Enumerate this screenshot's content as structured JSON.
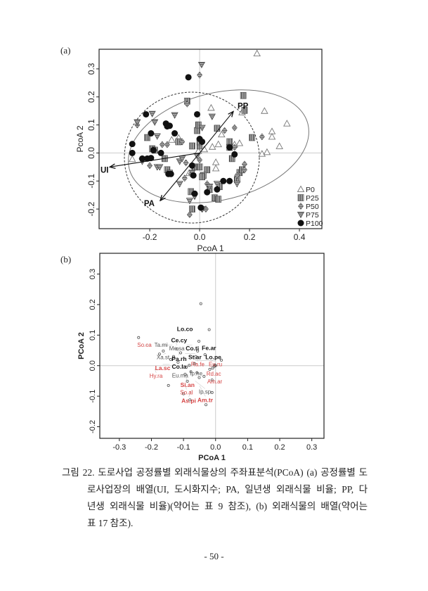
{
  "panel_a_label": "(a)",
  "panel_b_label": "(b)",
  "caption": {
    "lines": [
      "그림 22. 도로사업 공정률별 외래식물상의 주좌표분석(PCoA) (a) 공정률별 도",
      "로사업장의 배열(UI, 도시화지수; PA, 일년생 외래식물 비율; PP, 다",
      "년생 외래식물 비율)(약어는 표 9 참조), (b) 외래식물의 배열(약어는",
      "표 17 참조)."
    ]
  },
  "page_number": "- 50 -",
  "chart_data": [
    {
      "type": "scatter",
      "title": "",
      "xlabel": "PcoA 1",
      "ylabel": "PcoA 2",
      "xlim": [
        -0.403,
        0.49
      ],
      "ylim": [
        -0.27,
        0.37
      ],
      "xticks": [
        "-0.2",
        "0.0",
        "0.2",
        "0.4"
      ],
      "xtick_values": [
        -0.2,
        0.0,
        0.2,
        0.4
      ],
      "yticks": [
        "-0.2",
        "-0.1",
        "0.0",
        "0.1",
        "0.2",
        "0.3"
      ],
      "ytick_values": [
        -0.2,
        -0.1,
        0.0,
        0.1,
        0.2,
        0.3
      ],
      "legend_placement": "bottom-right",
      "series": [
        {
          "name": "P0",
          "marker": "open-triangle",
          "points": [
            [
              0.23,
              0.355
            ],
            [
              0.26,
              0.15
            ],
            [
              0.35,
              0.105
            ],
            [
              0.29,
              0.077
            ],
            [
              0.29,
              0.058
            ],
            [
              0.32,
              0.024
            ],
            [
              0.25,
              -0.003
            ],
            [
              0.27,
              0.003
            ],
            [
              0.046,
              0.161
            ],
            [
              0.088,
              0.066
            ],
            [
              0.075,
              0.031
            ],
            [
              0.051,
              0.022
            ],
            [
              0.065,
              -0.033
            ],
            [
              0.065,
              -0.055
            ],
            [
              0.12,
              0.03
            ],
            [
              0.14,
              0.03
            ],
            [
              0.16,
              0.035
            ],
            [
              -0.042,
              -0.072
            ],
            [
              -0.084,
              0.054
            ],
            [
              -0.112,
              0.047
            ],
            [
              0.019,
              0.013
            ],
            [
              -0.005,
              0.007
            ],
            [
              -0.27,
              -0.022
            ],
            [
              0.17,
              0.145
            ]
          ]
        },
        {
          "name": "P25",
          "marker": "striped-square",
          "points": [
            [
              0.175,
              0.205
            ],
            [
              0.18,
              0.152
            ],
            [
              0.21,
              0.055
            ],
            [
              -0.05,
              0.185
            ],
            [
              0.07,
              0.088
            ],
            [
              -0.01,
              0.08
            ],
            [
              -0.005,
              0.1
            ],
            [
              0.12,
              0.04
            ],
            [
              0.12,
              0.02
            ],
            [
              0.13,
              -0.02
            ],
            [
              -0.21,
              0.055
            ],
            [
              -0.19,
              0.015
            ],
            [
              -0.18,
              0.01
            ],
            [
              -0.14,
              -0.02
            ],
            [
              -0.13,
              -0.06
            ],
            [
              -0.12,
              -0.072
            ],
            [
              -0.085,
              0.04
            ],
            [
              -0.03,
              0.025
            ],
            [
              0.0,
              0.025
            ],
            [
              0.03,
              -0.06
            ],
            [
              0.015,
              -0.08
            ],
            [
              0.01,
              -0.085
            ],
            [
              -0.02,
              -0.05
            ],
            [
              0.0,
              -0.05
            ],
            [
              0.16,
              -0.07
            ],
            [
              0.15,
              -0.095
            ],
            [
              0.17,
              -0.06
            ],
            [
              0.08,
              -0.12
            ],
            [
              0.06,
              -0.16
            ],
            [
              0.075,
              -0.165
            ],
            [
              -0.035,
              -0.138
            ],
            [
              -0.03,
              -0.2
            ],
            [
              0.04,
              -0.13
            ],
            [
              0.0,
              0.04
            ]
          ]
        },
        {
          "name": "P50",
          "marker": "striped-diamond",
          "points": [
            [
              0.0,
              0.278
            ],
            [
              -0.05,
              0.175
            ],
            [
              -0.25,
              0.1
            ],
            [
              0.1,
              0.08
            ],
            [
              0.14,
              0.09
            ],
            [
              0.25,
              0.058
            ],
            [
              0.14,
              0.02
            ],
            [
              -0.07,
              0.04
            ],
            [
              -0.15,
              0.03
            ],
            [
              -0.2,
              -0.045
            ],
            [
              -0.055,
              -0.035
            ],
            [
              0.18,
              -0.04
            ],
            [
              0.18,
              -0.06
            ],
            [
              -0.035,
              -0.075
            ],
            [
              -0.06,
              -0.09
            ],
            [
              0.03,
              -0.11
            ],
            [
              0.15,
              -0.08
            ],
            [
              0.01,
              -0.2
            ],
            [
              0.025,
              -0.2
            ],
            [
              -0.04,
              -0.22
            ],
            [
              -0.02,
              -0.15
            ],
            [
              0.0,
              -0.025
            ],
            [
              -0.13,
              0.03
            ]
          ]
        },
        {
          "name": "P75",
          "marker": "striped-down-triangle",
          "points": [
            [
              0.008,
              0.315
            ],
            [
              -0.19,
              0.14
            ],
            [
              -0.1,
              0.135
            ],
            [
              0.05,
              0.13
            ],
            [
              -0.18,
              0.11
            ],
            [
              -0.25,
              0.11
            ],
            [
              0.01,
              0.09
            ],
            [
              -0.17,
              0.06
            ],
            [
              -0.23,
              -0.03
            ],
            [
              -0.17,
              -0.05
            ],
            [
              -0.16,
              -0.05
            ],
            [
              -0.08,
              -0.03
            ],
            [
              -0.01,
              -0.01
            ],
            [
              -0.08,
              -0.11
            ],
            [
              -0.03,
              -0.07
            ],
            [
              0.07,
              -0.11
            ],
            [
              0.04,
              -0.12
            ],
            [
              0.15,
              -0.11
            ],
            [
              -0.02,
              -0.155
            ],
            [
              -0.04,
              -0.17
            ],
            [
              0.01,
              -0.2
            ],
            [
              0.12,
              0.02
            ],
            [
              -0.07,
              -0.02
            ]
          ]
        },
        {
          "name": "P100",
          "marker": "filled-circle",
          "points": [
            [
              -0.045,
              0.27
            ],
            [
              -0.215,
              0.138
            ],
            [
              -0.01,
              0.138
            ],
            [
              -0.135,
              0.105
            ],
            [
              -0.13,
              0.095
            ],
            [
              -0.12,
              0.097
            ],
            [
              -0.1,
              0.07
            ],
            [
              -0.195,
              0.07
            ],
            [
              -0.27,
              0.032
            ],
            [
              -0.27,
              0.0
            ],
            [
              -0.185,
              0.01
            ],
            [
              -0.155,
              0.0
            ],
            [
              -0.23,
              -0.02
            ],
            [
              -0.21,
              -0.02
            ],
            [
              -0.195,
              -0.018
            ],
            [
              -0.125,
              -0.075
            ],
            [
              -0.115,
              -0.075
            ],
            [
              -0.03,
              -0.045
            ],
            [
              -0.025,
              -0.08
            ],
            [
              0.0,
              0.05
            ],
            [
              0.01,
              0.04
            ],
            [
              0.12,
              0.02
            ],
            [
              0.14,
              -0.005
            ],
            [
              0.095,
              -0.1
            ],
            [
              0.12,
              -0.1
            ],
            [
              0.03,
              -0.14
            ],
            [
              0.07,
              -0.13
            ],
            [
              0.005,
              -0.195
            ],
            [
              -0.02,
              -0.145
            ]
          ]
        }
      ],
      "vectors": [
        {
          "name": "UI",
          "x": -0.36,
          "y": -0.05
        },
        {
          "name": "PP",
          "x": 0.135,
          "y": 0.148
        },
        {
          "name": "PA",
          "x": -0.158,
          "y": -0.17
        }
      ]
    },
    {
      "type": "scatter",
      "title": "",
      "xlabel": "PCoA 1",
      "ylabel": "PCoA 2",
      "xlim": [
        -0.361,
        0.338
      ],
      "ylim": [
        -0.238,
        0.368
      ],
      "xticks": [
        "-0.3",
        "-0.2",
        "-0.1",
        "0.0",
        "0.1",
        "0.2",
        "0.3"
      ],
      "xtick_values": [
        -0.3,
        -0.2,
        -0.1,
        0.0,
        0.1,
        0.2,
        0.3
      ],
      "yticks": [
        "-0.2",
        "-0.1",
        "0.0",
        "0.1",
        "0.2",
        "0.3"
      ],
      "ytick_values": [
        -0.2,
        -0.1,
        0.0,
        0.1,
        0.2,
        0.3
      ],
      "points": [
        [
          -0.046,
          0.203
        ],
        [
          -0.24,
          0.092
        ],
        [
          -0.02,
          0.118
        ],
        [
          -0.052,
          0.08
        ],
        [
          -0.175,
          0.038
        ],
        [
          -0.163,
          0.048
        ],
        [
          -0.033,
          0.036
        ],
        [
          -0.056,
          0.048
        ],
        [
          0.018,
          0.018
        ],
        [
          -0.004,
          -0.002
        ],
        [
          0.0,
          0.0
        ],
        [
          -0.002,
          0.002
        ],
        [
          -0.009,
          -0.008
        ],
        [
          -0.018,
          -0.012
        ],
        [
          -0.011,
          -0.047
        ],
        [
          -0.147,
          -0.065
        ],
        [
          -0.1,
          -0.092
        ],
        [
          -0.08,
          -0.112
        ],
        [
          -0.03,
          -0.128
        ],
        [
          -0.011,
          -0.088
        ],
        [
          -0.036,
          -0.035
        ],
        [
          -0.058,
          -0.023
        ],
        [
          -0.077,
          -0.02
        ],
        [
          -0.091,
          -0.005
        ],
        [
          -0.117,
          0.011
        ],
        [
          -0.131,
          0.03
        ],
        [
          -0.109,
          0.042
        ],
        [
          -0.062,
          0.03
        ],
        [
          -0.082,
          0.001
        ],
        [
          -0.066,
          0.007
        ],
        [
          -0.095,
          -0.028
        ],
        [
          -0.088,
          -0.051
        ],
        [
          -0.051,
          -0.039
        ],
        [
          -0.14,
          0.02
        ],
        [
          -0.12,
          0.055
        ]
      ],
      "labels": [
        {
          "text": "Lo.co",
          "x": -0.1,
          "y": 0.12,
          "color": "#111111",
          "bold": true
        },
        {
          "text": "Ce.cy",
          "x": -0.118,
          "y": 0.095,
          "color": "#111111",
          "bold": true
        },
        {
          "text": "Me.sa",
          "x": -0.125,
          "y": 0.08,
          "color": "#555555",
          "bold": false
        },
        {
          "text": "Ta.mi",
          "x": -0.135,
          "y": 0.068,
          "color": "#555555",
          "bold": false
        },
        {
          "text": "Co.ti",
          "x": -0.09,
          "y": 0.068,
          "color": "#111111",
          "bold": true
        },
        {
          "text": "Pa.rh",
          "x": -0.118,
          "y": 0.057,
          "color": "#111111",
          "bold": true
        },
        {
          "text": "Fe.ar",
          "x": -0.025,
          "y": 0.058,
          "color": "#111111",
          "bold": true
        },
        {
          "text": "So.ca",
          "x": -0.2,
          "y": 0.068,
          "color": "#d64545",
          "bold": false
        },
        {
          "text": "St.ar",
          "x": -0.095,
          "y": 0.04,
          "color": "#111111",
          "bold": true
        },
        {
          "text": "Xa.st",
          "x": -0.155,
          "y": 0.04,
          "color": "#555555",
          "bold": false
        },
        {
          "text": "Ra.fe",
          "x": -0.06,
          "y": 0.028,
          "color": "#d64545",
          "bold": false
        },
        {
          "text": "Co.la",
          "x": -0.118,
          "y": 0.02,
          "color": "#111111",
          "bold": true
        },
        {
          "text": "Lo.pe",
          "x": -0.064,
          "y": 0.017,
          "color": "#111111",
          "bold": true
        },
        {
          "text": "Eu.ru",
          "x": -0.018,
          "y": 0.017,
          "color": "#d64545",
          "bold": false
        },
        {
          "text": "La.sc",
          "x": -0.143,
          "y": 0.004,
          "color": "#d64545",
          "bold": true
        },
        {
          "text": "Hy.ra",
          "x": -0.19,
          "y": -0.01,
          "color": "#d64545",
          "bold": false
        },
        {
          "text": "Eu.ma",
          "x": -0.115,
          "y": -0.02,
          "color": "#555555",
          "bold": false
        },
        {
          "text": "Ip.he",
          "x": -0.078,
          "y": -0.025,
          "color": "#555555",
          "bold": false
        },
        {
          "text": "Rd.ac",
          "x": -0.01,
          "y": -0.026,
          "color": "#d64545",
          "bold": false
        },
        {
          "text": "Am.ar",
          "x": -0.007,
          "y": -0.04,
          "color": "#d64545",
          "bold": false
        },
        {
          "text": "Si.an",
          "x": -0.092,
          "y": -0.04,
          "color": "#d64545",
          "bold": true
        },
        {
          "text": "Ip.sp",
          "x": -0.064,
          "y": -0.05,
          "color": "#555555",
          "bold": false
        },
        {
          "text": "So.al",
          "x": -0.095,
          "y": -0.064,
          "color": "#d64545",
          "bold": false
        },
        {
          "text": "Am.tr",
          "x": -0.05,
          "y": -0.066,
          "color": "#d64545",
          "bold": true
        },
        {
          "text": "As.pi",
          "x": -0.075,
          "y": -0.08,
          "color": "#d64545",
          "bold": true
        }
      ]
    }
  ]
}
